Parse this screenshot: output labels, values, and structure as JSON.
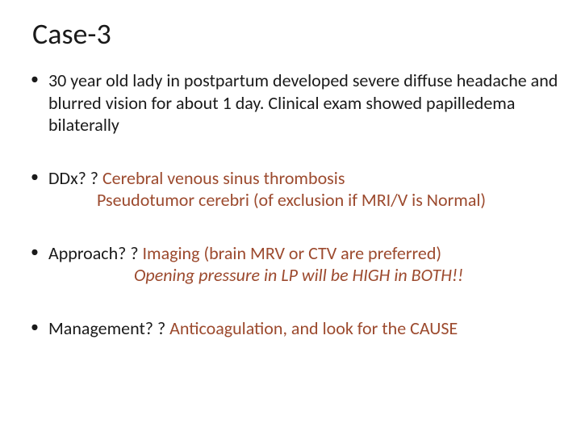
{
  "title": "Case-3",
  "bullets": {
    "b1": {
      "text": "30 year old lady in postpartum developed severe diffuse headache and blurred vision for about 1 day. Clinical exam showed papilledema bilaterally"
    },
    "b2": {
      "label": "DDx? ? ",
      "answer1": "Cerebral venous sinus thrombosis",
      "answer2": "Pseudotumor cerebri (of exclusion if MRI/V is Normal)"
    },
    "b3": {
      "label": "Approach? ? ",
      "answer1": "Imaging (brain MRV or CTV are preferred)",
      "answer2": "Opening pressure in LP will be HIGH in BOTH!!"
    },
    "b4": {
      "label": "Management? ? ",
      "answer": "Anticoagulation, and look for the CAUSE"
    }
  },
  "colors": {
    "title": "#1a1a1a",
    "body_black": "#1a1a1a",
    "body_brown": "#9c4a2e",
    "background": "#ffffff"
  },
  "fonts": {
    "title_size": 36,
    "body_size": 22,
    "family": "Calibri"
  }
}
